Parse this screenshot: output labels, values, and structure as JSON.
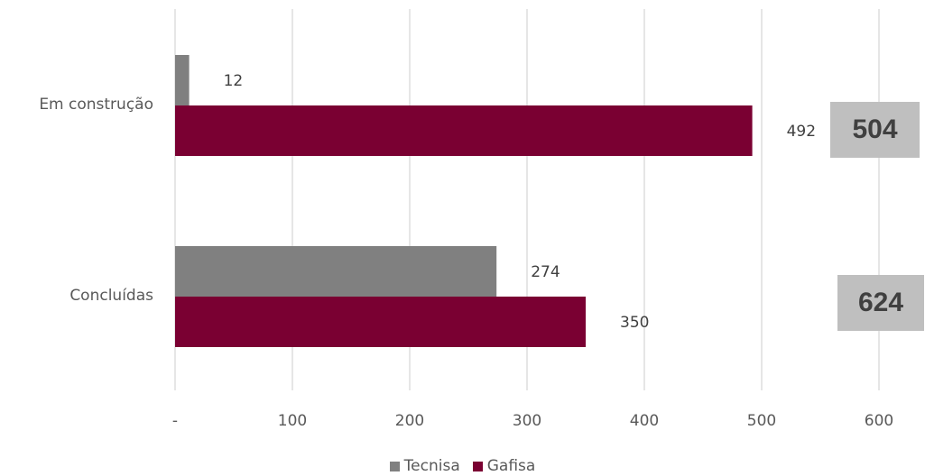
{
  "chart_data": {
    "type": "bar",
    "orientation": "horizontal",
    "categories": [
      "Em construção",
      "Concluídas"
    ],
    "series": [
      {
        "name": "Tecnisa",
        "color": "#808080",
        "values": [
          12,
          274
        ]
      },
      {
        "name": "Gafisa",
        "color": "#7a0032",
        "values": [
          492,
          350
        ]
      }
    ],
    "data_labels": {
      "Tecnisa": [
        "12",
        "274"
      ],
      "Gafisa": [
        "492",
        "350"
      ]
    },
    "totals": [
      "504",
      "624"
    ],
    "xlim": [
      0,
      600
    ],
    "x_ticks": [
      0,
      100,
      200,
      300,
      400,
      500,
      600
    ],
    "x_tick_labels": [
      "-",
      "100",
      "200",
      "300",
      "400",
      "500",
      "600"
    ],
    "grid": true,
    "legend_position": "bottom",
    "title": "",
    "xlabel": "",
    "ylabel": ""
  }
}
